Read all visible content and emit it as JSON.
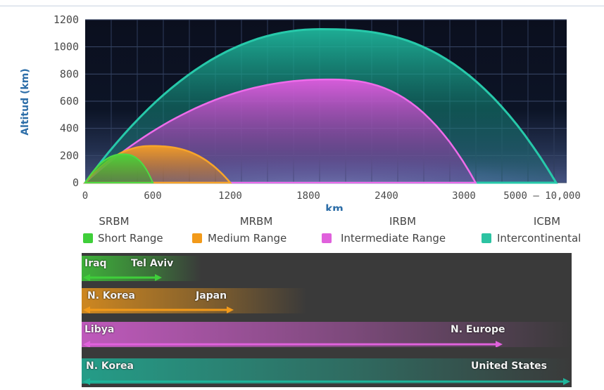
{
  "chart_data": {
    "type": "area",
    "ylabel": "Altitud (km)",
    "xlabel": "km",
    "ylim": [
      0,
      1200
    ],
    "y_ticks": [
      "0",
      "200",
      "400",
      "600",
      "800",
      "1000",
      "1200"
    ],
    "x_ticks": [
      "0",
      "600",
      "1200",
      "1800",
      "2400",
      "3000",
      "5000 – 10,000"
    ],
    "series": [
      {
        "name": "ICBM",
        "color": "#1fb59b",
        "range_end": "10000",
        "apogee": 1130
      },
      {
        "name": "IRBM",
        "color": "#d94fd6",
        "range_end": "3300",
        "apogee": 760
      },
      {
        "name": "MRBM",
        "color": "#f29a1a",
        "range_end": "1200",
        "apogee": 270
      },
      {
        "name": "SRBM",
        "color": "#3fcf3a",
        "range_end": "600",
        "apogee": 210
      }
    ],
    "grid": true
  },
  "legend": [
    {
      "code": "SRBM",
      "name": "Short Range",
      "color": "#3fcf3a"
    },
    {
      "code": "MRBM",
      "name": "Medium Range",
      "color": "#f29a1a"
    },
    {
      "code": "IRBM",
      "name": "Intermediate Range",
      "color": "#e061dc"
    },
    {
      "code": "ICBM",
      "name": "Intercontinental",
      "color": "#2cc3a2"
    }
  ],
  "ranges": [
    {
      "from": "Iraq",
      "to": "Tel Aviv",
      "color": "#3fcf3a"
    },
    {
      "from": "N. Korea",
      "to": "Japan",
      "color": "#f29a1a"
    },
    {
      "from": "Libya",
      "to": "N. Europe",
      "color": "#e061dc"
    },
    {
      "from": "N. Korea",
      "to": "United States",
      "color": "#1fb59b"
    }
  ]
}
